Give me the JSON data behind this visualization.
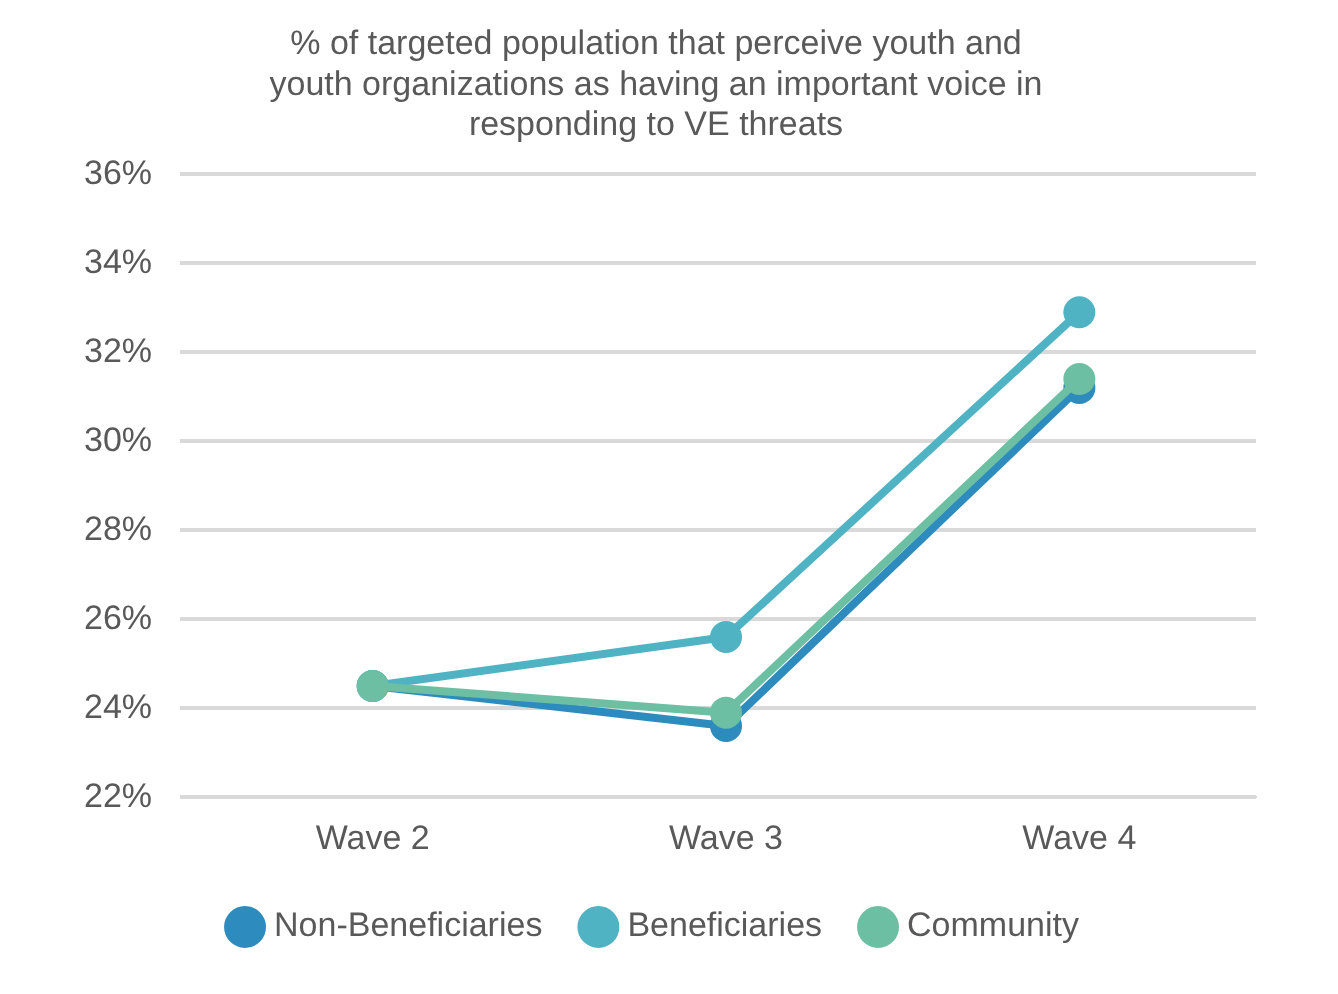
{
  "chart_data": {
    "type": "line",
    "title": "% of targeted population that perceive youth and youth organizations as having an important voice in responding to VE threats",
    "categories": [
      "Wave 2",
      "Wave 3",
      "Wave 4"
    ],
    "series": [
      {
        "name": "Non-Beneficiaries",
        "color": "#2e8bbd",
        "values": [
          24.5,
          23.6,
          31.2
        ]
      },
      {
        "name": "Beneficiaries",
        "color": "#4fb3c4",
        "values": [
          24.5,
          25.6,
          32.9
        ]
      },
      {
        "name": "Community",
        "color": "#6cbfa3",
        "values": [
          24.5,
          23.9,
          31.4
        ]
      }
    ],
    "ylim": [
      22,
      36
    ],
    "yticks": [
      {
        "value": 22,
        "label": "22%"
      },
      {
        "value": 24,
        "label": "24%"
      },
      {
        "value": 26,
        "label": "26%"
      },
      {
        "value": 28,
        "label": "28%"
      },
      {
        "value": 30,
        "label": "30%"
      },
      {
        "value": 32,
        "label": "32%"
      },
      {
        "value": 34,
        "label": "34%"
      },
      {
        "value": 36,
        "label": "36%"
      }
    ],
    "grid": "y",
    "legend": "bottom",
    "marker": "circle",
    "line_style": "solid"
  }
}
